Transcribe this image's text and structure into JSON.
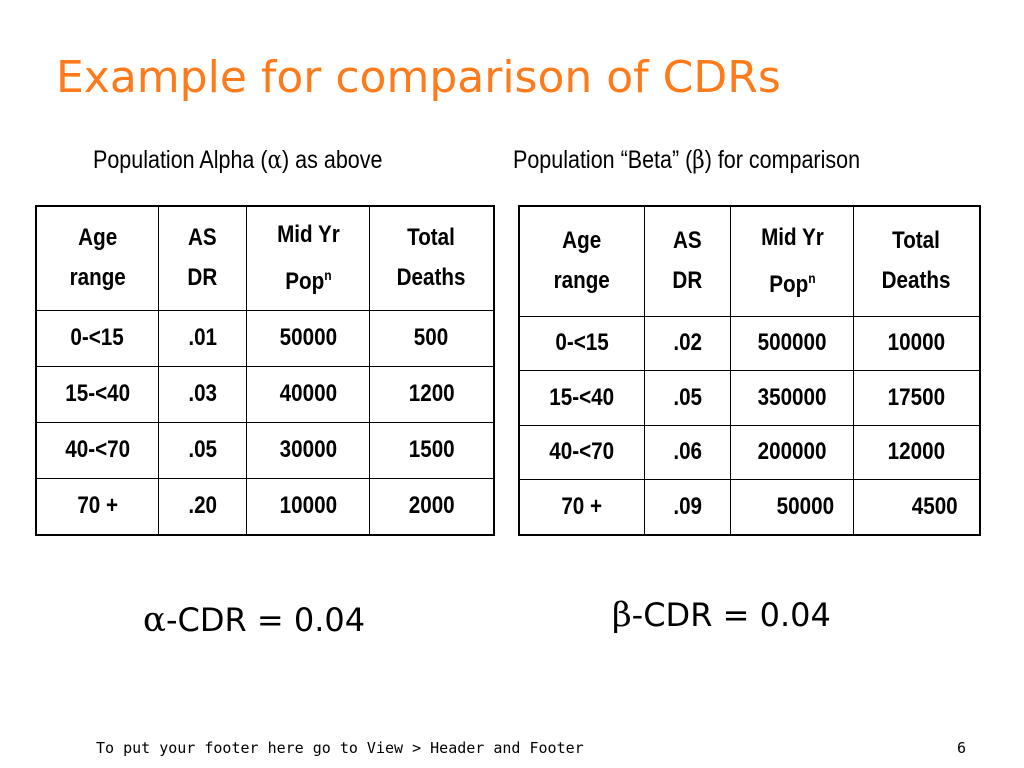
{
  "slide": {
    "title": "Example for comparison of CDRs",
    "footer": "To put your footer here go to View > Header and Footer",
    "page_number": "6",
    "title_color": "#ff7a1a"
  },
  "alpha": {
    "caption_pre": "Population Alpha (",
    "caption_symbol": "α",
    "caption_post": ") as above",
    "headers": [
      {
        "line1": "Age",
        "line2": "range"
      },
      {
        "line1": "AS",
        "line2": "DR"
      },
      {
        "line1": "Mid Yr",
        "line2": "Pop",
        "sup": "n"
      },
      {
        "line1": "Total",
        "line2": "Deaths"
      }
    ],
    "rows": [
      [
        "0-<15",
        ".01",
        "50000",
        "500"
      ],
      [
        "15-<40",
        ".03",
        "40000",
        "1200"
      ],
      [
        "40-<70",
        ".05",
        "30000",
        "1500"
      ],
      [
        "70 +",
        ".20",
        "10000",
        "2000"
      ]
    ],
    "cdr_symbol": "α",
    "cdr_text": "-CDR = 0.04"
  },
  "beta": {
    "caption_pre": "Population “Beta” (",
    "caption_symbol": "β",
    "caption_post": ") for comparison",
    "headers": [
      {
        "line1": "Age",
        "line2": "range"
      },
      {
        "line1": "AS",
        "line2": "DR"
      },
      {
        "line1": "Mid Yr",
        "line2": "Pop",
        "sup": "n"
      },
      {
        "line1": "Total",
        "line2": "Deaths"
      }
    ],
    "rows": [
      [
        "0-<15",
        ".02",
        "500000",
        "10000"
      ],
      [
        "15-<40",
        ".05",
        "350000",
        "17500"
      ],
      [
        "40-<70",
        ".06",
        "200000",
        "12000"
      ],
      [
        "70 +",
        ".09",
        "50000",
        "4500"
      ]
    ],
    "cdr_symbol": "β",
    "cdr_text": "-CDR = 0.04"
  }
}
